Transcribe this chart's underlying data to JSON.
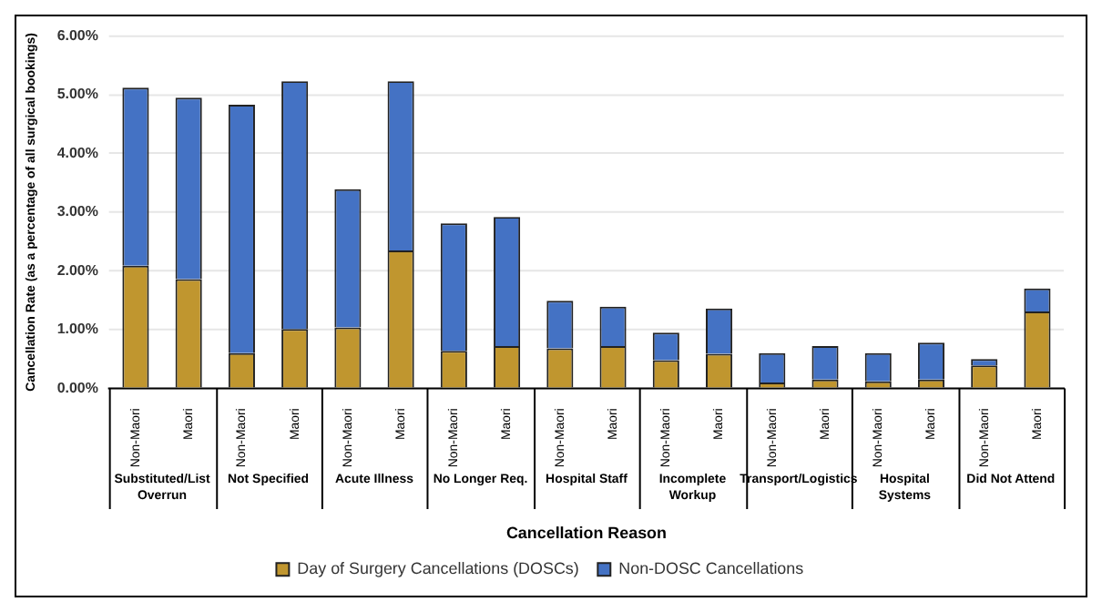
{
  "chart_data": {
    "type": "bar",
    "stacked": true,
    "xlabel": "Cancellation Reason",
    "ylabel": "Cancellation Rate (as a percentage of all surgical bookings)",
    "categories": [
      "Non-Maori",
      "Maori",
      "Non-Maori",
      "Maori",
      "Non-Maori",
      "Maori",
      "Non-Maori",
      "Maori",
      "Non-Maori",
      "Maori",
      "Non-Maori",
      "Maori",
      "Non-Maori",
      "Maori",
      "Non-Maori",
      "Maori",
      "Non-Maori",
      "Maori"
    ],
    "annotations": [
      "Substituted/List Overrun",
      "Not Specified",
      "Acute Illness",
      "No Longer Req.",
      "Hospital Staff",
      "Incomplete Workup",
      "Transport/Logistics",
      "Hospital Systems",
      "Did Not Attend"
    ],
    "series": [
      {
        "name": "Day of Surgery Cancellations (DOSCs)",
        "color": "#c0962f",
        "values": [
          2.09,
          1.86,
          0.6,
          1.01,
          1.04,
          2.35,
          0.64,
          0.72,
          0.68,
          0.72,
          0.48,
          0.59,
          0.1,
          0.15,
          0.12,
          0.15,
          0.39,
          1.31
        ]
      },
      {
        "name": "Non-DOSC Cancellations",
        "color": "#4472c4",
        "values": [
          3.03,
          3.09,
          4.23,
          4.22,
          2.35,
          2.88,
          2.17,
          2.2,
          0.81,
          0.67,
          0.47,
          0.77,
          0.5,
          0.57,
          0.48,
          0.63,
          0.11,
          0.39
        ]
      }
    ],
    "ylim": [
      0,
      6
    ],
    "yticks": [
      {
        "value": 0,
        "label": "0.00%"
      },
      {
        "value": 1,
        "label": "1.00%"
      },
      {
        "value": 2,
        "label": "2.00%"
      },
      {
        "value": 3,
        "label": "3.00%"
      },
      {
        "value": 4,
        "label": "4.00%"
      },
      {
        "value": 5,
        "label": "5.00%"
      },
      {
        "value": 6,
        "label": "6.00%"
      }
    ],
    "grid": "y",
    "legend": "bottom"
  }
}
